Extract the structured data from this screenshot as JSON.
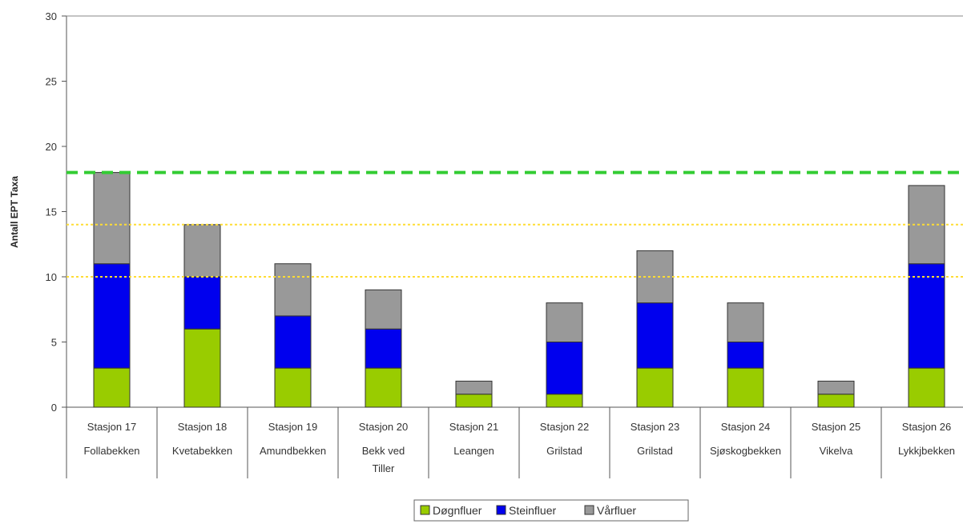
{
  "chart_data": {
    "type": "bar",
    "stacked": true,
    "title": "",
    "xlabel": "",
    "ylabel": "Antall EPT Taxa",
    "ylim": [
      0,
      30
    ],
    "yticks": [
      "0",
      "5",
      "10",
      "15",
      "20",
      "25",
      "30"
    ],
    "categories": [
      [
        "Stasjon 17",
        "Follabekken"
      ],
      [
        "Stasjon 18",
        "Kvetabekken"
      ],
      [
        "Stasjon 19",
        "Amundbekken"
      ],
      [
        "Stasjon 20",
        "Bekk ved",
        "Tiller"
      ],
      [
        "Stasjon 21",
        "Leangen"
      ],
      [
        "Stasjon 22",
        "Grilstad"
      ],
      [
        "Stasjon 23",
        "Grilstad"
      ],
      [
        "Stasjon 24",
        "Sjøskogbekken"
      ],
      [
        "Stasjon 25",
        "Vikelva"
      ],
      [
        "Stasjon 26",
        "Lykkjbekken"
      ]
    ],
    "series": [
      {
        "name": "Døgnfluer",
        "color": "#99cc00",
        "values": [
          3,
          6,
          3,
          3,
          1,
          1,
          3,
          3,
          1,
          3
        ]
      },
      {
        "name": "Steinfluer",
        "color": "#0000ee",
        "values": [
          8,
          4,
          4,
          3,
          0,
          4,
          5,
          2,
          0,
          8
        ]
      },
      {
        "name": "Vårfluer",
        "color": "#999999",
        "values": [
          7,
          4,
          4,
          3,
          1,
          3,
          4,
          3,
          1,
          6
        ]
      }
    ],
    "reference_lines": [
      {
        "value": 18,
        "color": "#33cc33",
        "style": "dashed"
      },
      {
        "value": 14,
        "color": "#ffdd33",
        "style": "dotted"
      },
      {
        "value": 10,
        "color": "#ffdd33",
        "style": "dotted"
      }
    ],
    "legend_position": "bottom",
    "grid": false
  }
}
